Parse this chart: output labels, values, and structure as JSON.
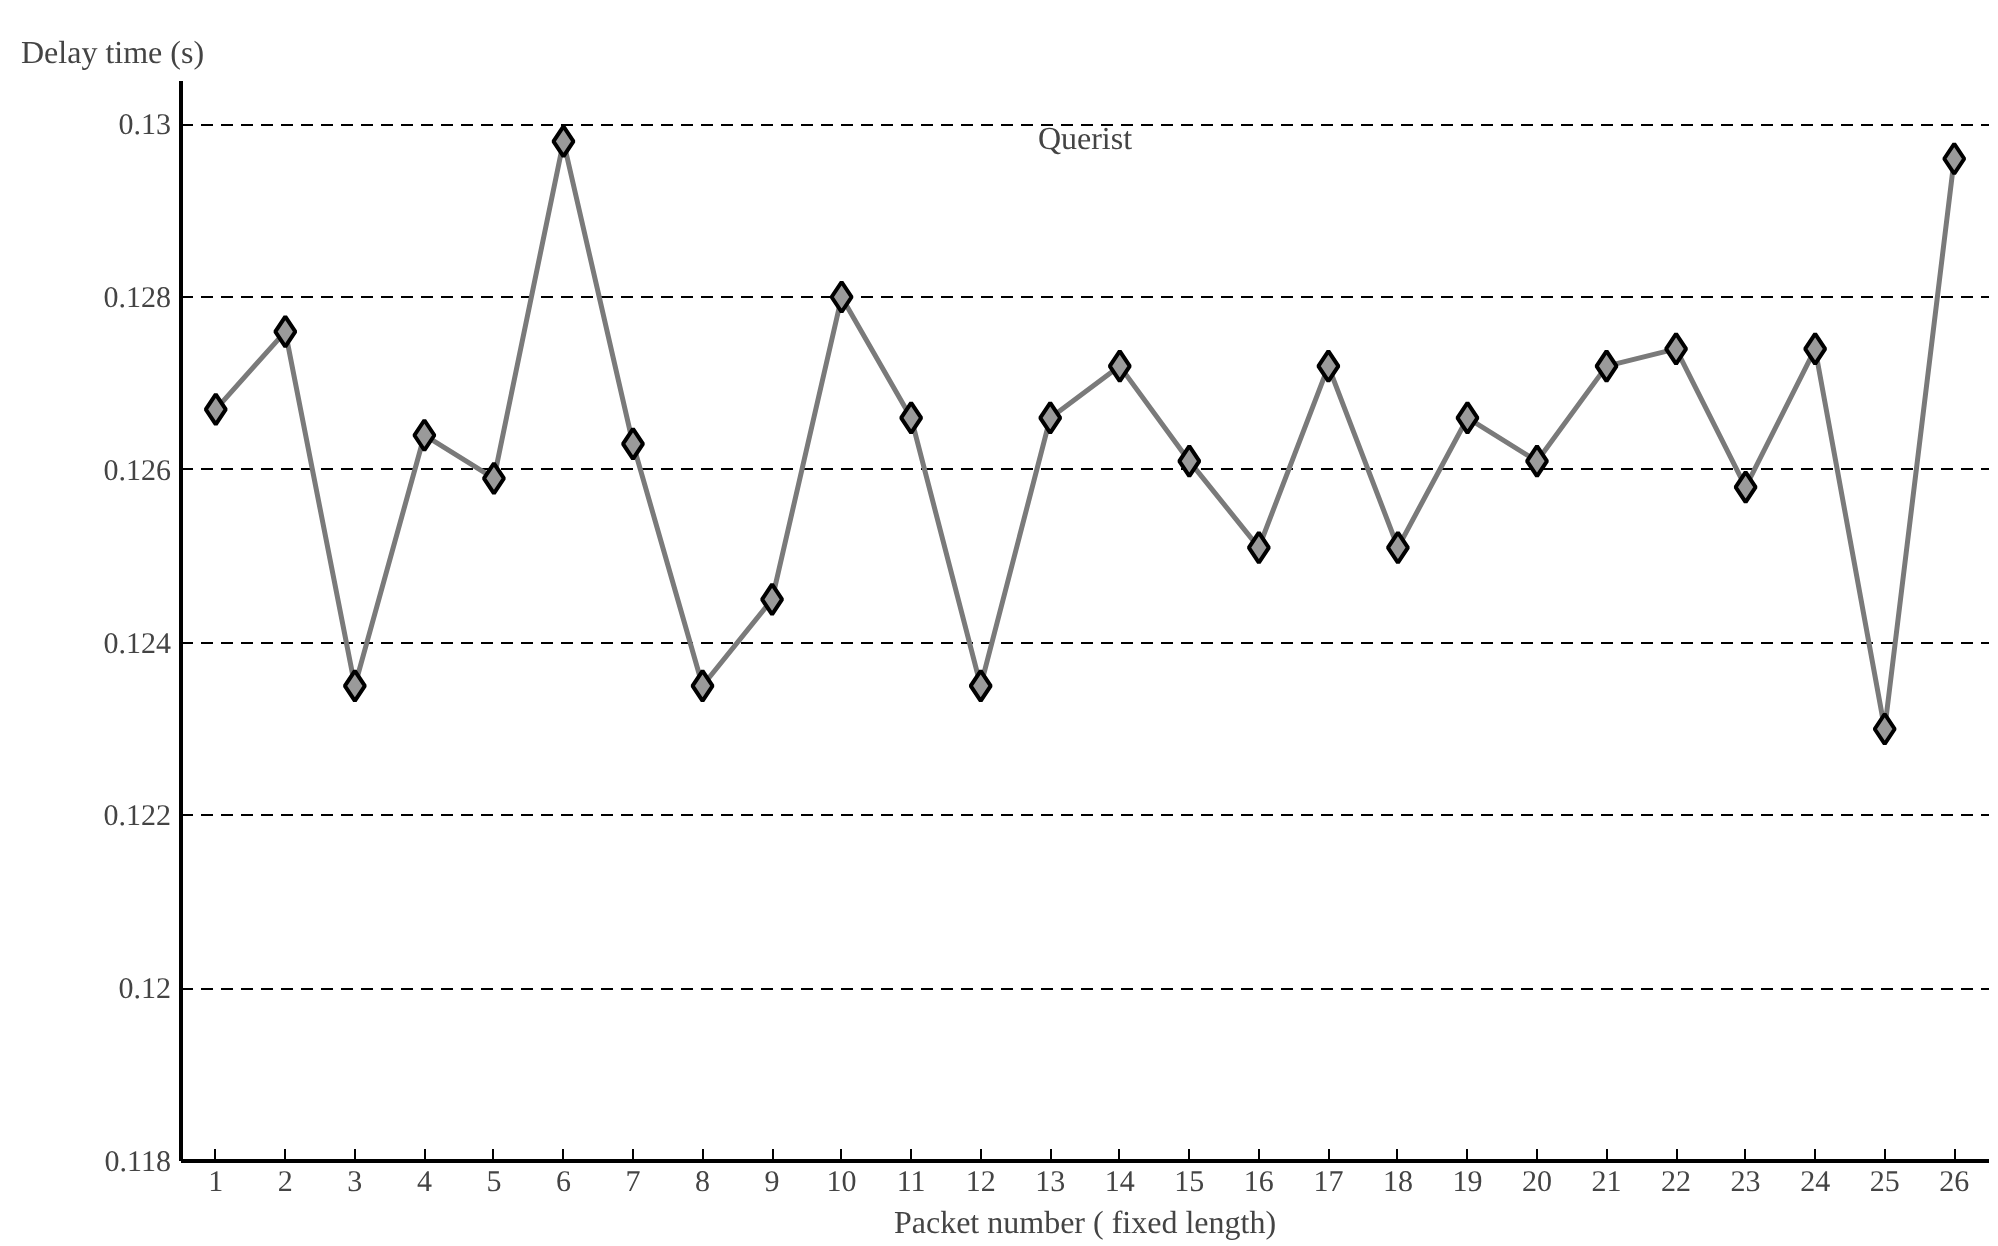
{
  "chart_data": {
    "type": "line",
    "xlabel": "Packet number ( fixed length)",
    "ylabel": "Delay time (s)",
    "x": [
      1,
      2,
      3,
      4,
      5,
      6,
      7,
      8,
      9,
      10,
      11,
      12,
      13,
      14,
      15,
      16,
      17,
      18,
      19,
      20,
      21,
      22,
      23,
      24,
      25,
      26
    ],
    "series": [
      {
        "color": "#7a7a7a",
        "values": [
          0.1267,
          0.1276,
          0.1235,
          0.1264,
          0.1259,
          0.1298,
          0.1263,
          0.1235,
          0.1245,
          0.128,
          0.1266,
          0.1235,
          0.1266,
          0.1272,
          0.1261,
          0.1251,
          0.1272,
          0.1251,
          0.1266,
          0.1261,
          0.1272,
          0.1274,
          0.1258,
          0.1274,
          0.123,
          0.1296
        ]
      }
    ],
    "marker": "diamond",
    "line_style": "solid",
    "xlim": [
      0.5,
      26.5
    ],
    "xticks": [
      1,
      2,
      3,
      4,
      5,
      6,
      7,
      8,
      9,
      10,
      11,
      12,
      13,
      14,
      15,
      16,
      17,
      18,
      19,
      20,
      21,
      22,
      23,
      24,
      25,
      26
    ],
    "ylim": [
      0.118,
      0.1305
    ],
    "yticks": [
      0.118,
      0.12,
      0.122,
      0.124,
      0.126,
      0.128,
      0.13
    ],
    "grid": "y",
    "annotations": [
      "Querist"
    ]
  }
}
